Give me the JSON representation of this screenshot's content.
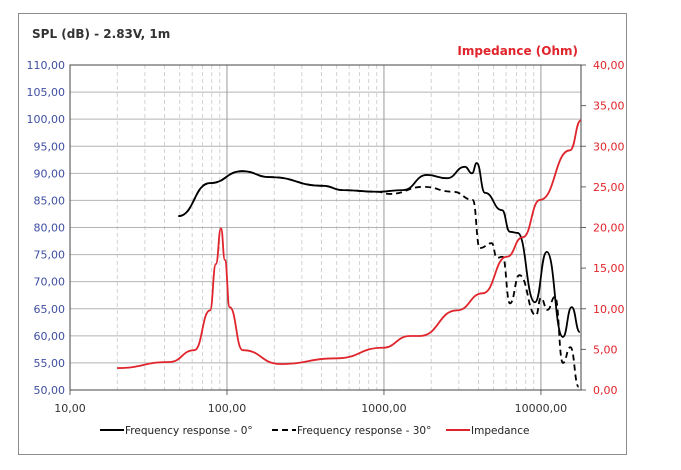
{
  "chart_data": {
    "type": "line",
    "title": "SPL (dB) - 2.83V, 1m",
    "ylabel_right": "Impedance (Ohm)",
    "x_scale": "log",
    "xlim": [
      10,
      18000
    ],
    "ylim": [
      50,
      110
    ],
    "ylim_right": [
      0,
      40
    ],
    "x_ticks": [
      10,
      100,
      1000,
      10000
    ],
    "x_tick_labels": [
      "10,00",
      "100,00",
      "1000,00",
      "10000,00"
    ],
    "y_ticks": [
      50,
      55,
      60,
      65,
      70,
      75,
      80,
      85,
      90,
      95,
      100,
      105,
      110
    ],
    "y_tick_labels": [
      "50,00",
      "55,00",
      "60,00",
      "65,00",
      "70,00",
      "75,00",
      "80,00",
      "85,00",
      "90,00",
      "95,00",
      "100,00",
      "105,00",
      "110,00"
    ],
    "y_right_ticks": [
      0,
      5,
      10,
      15,
      20,
      25,
      30,
      35,
      40
    ],
    "y_right_tick_labels": [
      "0,00",
      "5,00",
      "10,00",
      "15,00",
      "20,00",
      "25,00",
      "30,00",
      "35,00",
      "40,00"
    ],
    "grid": true,
    "legend_placement": "bottom",
    "colors": {
      "left_axis": "#3f4fa0",
      "right_axis": "#e0242b",
      "grid": "#b4b4b4"
    },
    "series": [
      {
        "name": "Frequency response - 0°",
        "axis": "left",
        "color": "#000000",
        "style": "solid",
        "x": [
          49,
          78,
          125,
          188,
          408,
          548,
          902,
          1320,
          1880,
          2520,
          3280,
          3640,
          3900,
          4400,
          5650,
          6350,
          7100,
          9160,
          10900,
          13800,
          15700,
          17700
        ],
        "y": [
          82.1,
          88.2,
          90.4,
          89.3,
          87.7,
          86.9,
          86.6,
          86.9,
          89.7,
          89.1,
          91.2,
          90.0,
          91.9,
          86.4,
          83.2,
          79.2,
          79.0,
          66.2,
          75.5,
          59.8,
          65.3,
          60.7
        ]
      },
      {
        "name": "Frequency response - 30°",
        "axis": "left",
        "color": "#000000",
        "style": "dashed",
        "x": [
          49,
          78,
          125,
          188,
          408,
          548,
          902,
          1090,
          1780,
          2760,
          3680,
          4080,
          4860,
          5240,
          5700,
          6350,
          7300,
          9300,
          10000,
          11000,
          12300,
          13800,
          15400,
          17400
        ],
        "y": [
          82.1,
          88.2,
          90.4,
          89.3,
          87.7,
          86.9,
          86.6,
          86.2,
          87.5,
          86.6,
          85.1,
          76.2,
          77.1,
          74.4,
          74.6,
          66.0,
          71.2,
          63.8,
          67.0,
          64.8,
          67.2,
          55.0,
          57.9,
          50.6
        ]
      },
      {
        "name": "Impedance",
        "axis": "right",
        "color": "#e0242b",
        "style": "solid",
        "x": [
          20,
          43,
          62,
          78,
          85,
          91.6,
          97,
          104,
          126,
          218,
          500,
          980,
          1465,
          1700,
          2920,
          4260,
          6060,
          7660,
          9870,
          15300,
          18000
        ],
        "y": [
          2.7,
          3.45,
          4.9,
          9.8,
          15.5,
          19.9,
          16,
          10.2,
          4.9,
          3.2,
          3.9,
          5.2,
          6.65,
          6.65,
          9.8,
          11.9,
          16.4,
          18.8,
          23.4,
          29.5,
          33.2
        ]
      }
    ]
  }
}
